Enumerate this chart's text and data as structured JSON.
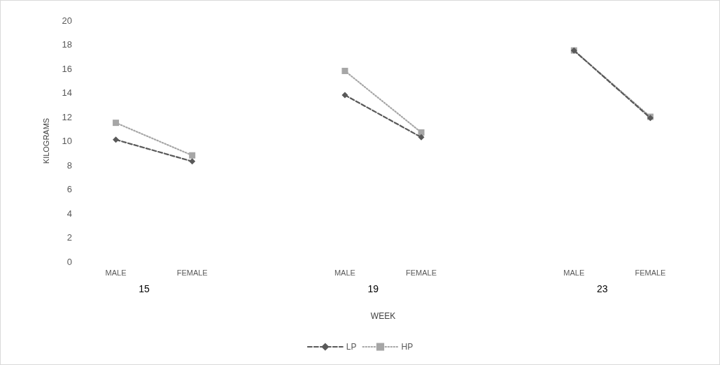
{
  "chart_data": {
    "type": "line",
    "xlabel": "WEEK",
    "ylabel": "KILOGRAMS",
    "categories": [
      "MALE",
      "FEMALE",
      null,
      "MALE",
      "FEMALE",
      null,
      "MALE",
      "FEMALE"
    ],
    "series": [
      {
        "name": "LP",
        "color": "#595959",
        "marker": "diamond",
        "line_style": "dashed",
        "values": [
          10.1,
          8.3,
          null,
          13.8,
          10.3,
          null,
          17.5,
          11.9
        ]
      },
      {
        "name": "HP",
        "color": "#a6a6a6",
        "marker": "square",
        "line_style": "dotted",
        "values": [
          11.5,
          8.8,
          null,
          15.8,
          10.7,
          null,
          17.5,
          12.0
        ]
      }
    ],
    "annotations": [
      "15",
      "19",
      "23"
    ],
    "ylim": [
      0,
      20
    ],
    "yticks": [
      0,
      2,
      4,
      6,
      8,
      10,
      12,
      14,
      16,
      18,
      20
    ],
    "grid": false,
    "legend": "bottom"
  }
}
